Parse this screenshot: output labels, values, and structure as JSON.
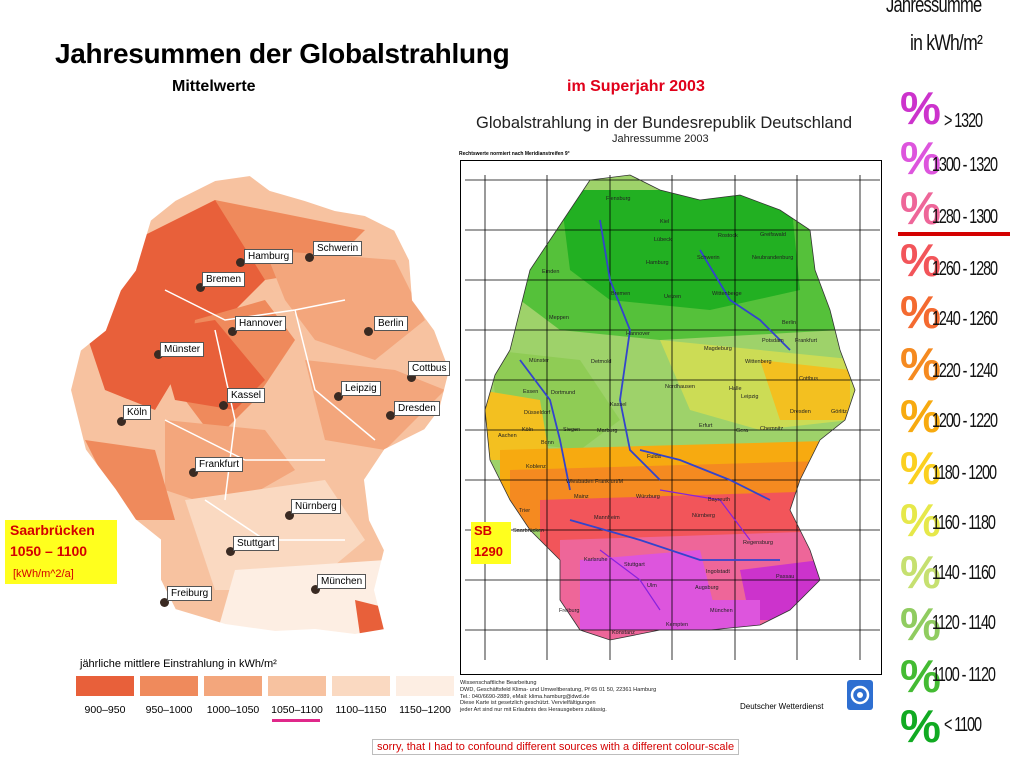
{
  "title": "Jahresummen der Globalstrahlung",
  "subtitle_left": "Mittelwerte",
  "subtitle_right": "im Superjahr 2003",
  "left_map": {
    "cities": [
      "Hamburg",
      "Schwerin",
      "Bremen",
      "Hannover",
      "Berlin",
      "Münster",
      "Cottbus",
      "Leipzig",
      "Kassel",
      "Dresden",
      "Köln",
      "Frankfurt",
      "Nürnberg",
      "Stuttgart",
      "München",
      "Freiburg"
    ],
    "legend_title": "jährliche mittlere Einstrahlung in kWh/m²",
    "legend": [
      {
        "label": "900–950",
        "color": "#e8603a"
      },
      {
        "label": "950–1000",
        "color": "#ef8a5c"
      },
      {
        "label": "1000–1050",
        "color": "#f3a67c"
      },
      {
        "label": "1050–1100",
        "color": "#f7c2a0"
      },
      {
        "label": "1100–1150",
        "color": "#fad9c1"
      },
      {
        "label": "1150–1200",
        "color": "#fdeee3"
      }
    ]
  },
  "saarbruecken": {
    "name": "Saarbrücken",
    "value": "1050 – 1100",
    "unit": "[kWh/m^2/a]"
  },
  "right_map": {
    "title": "Globalstrahlung in der Bundesrepublik Deutschland",
    "subtitle": "Jahressumme 2003",
    "note": "Rechtswerte normiert nach Meridianstreifen 9°",
    "cities": [
      "Flensburg",
      "Kiel",
      "Lübeck",
      "Rostock",
      "Greifswald",
      "Hamburg",
      "Schwerin",
      "Neubrandenburg",
      "Emden",
      "Bremen",
      "Uelzen",
      "Wittenberge",
      "Meppen",
      "Berlin",
      "Hannover",
      "Potsdam",
      "Frankfurt",
      "Magdeburg",
      "Münster",
      "Detmold",
      "Wittenberg",
      "Cottbus",
      "Nordhausen",
      "Essen",
      "Dortmund",
      "Halle",
      "Leipzig",
      "Düsseldorf",
      "Kassel",
      "Dresden",
      "Görlitz",
      "Köln",
      "Siegen",
      "Marburg",
      "Erfurt",
      "Gera",
      "Chemnitz",
      "Aachen",
      "Bonn",
      "Fulda",
      "Koblenz",
      "Wiesbaden",
      "Frankfurt/M",
      "Mainz",
      "Würzburg",
      "Bayreuth",
      "Trier",
      "Mannheim",
      "Nürnberg",
      "Saarbrücken",
      "Karlsruhe",
      "Regensburg",
      "Stuttgart",
      "Ingolstadt",
      "Passau",
      "Ulm",
      "Augsburg",
      "Freiburg",
      "München",
      "Kempten",
      "Konstanz"
    ],
    "credit": [
      "Wissenschaftliche Bearbeitung",
      "DWD, Geschäftsfeld Klima- und Umweltberatung, Pf 65 01 50, 22361 Hamburg",
      "Tel.: 040/6690-2889, eMail: klima.hamburg@dwd.de",
      "Diese Karte ist gesetzlich geschützt. Vervielfältigungen",
      "jeder Art sind nur mit Erlaubnis des Herausgebers zulässig."
    ],
    "publisher": "Deutscher Wetterdienst",
    "sb_name": "SB",
    "sb_value": "1290"
  },
  "scale": {
    "heading_line1": "Jahressumme",
    "heading_line2": "in kWh/m²",
    "items": [
      {
        "label": "> 1320",
        "color": "#cc33cc"
      },
      {
        "label": "1300 - 1320",
        "color": "#dd55dd"
      },
      {
        "label": "1280 - 1300",
        "color": "#ee6699"
      },
      {
        "label": "1260 - 1280",
        "color": "#f2555a"
      },
      {
        "label": "1240 - 1260",
        "color": "#f46a30"
      },
      {
        "label": "1220 - 1240",
        "color": "#f58a20"
      },
      {
        "label": "1200 - 1220",
        "color": "#f7aa10"
      },
      {
        "label": "1180 - 1200",
        "color": "#fbd020"
      },
      {
        "label": "1160 - 1180",
        "color": "#e6e84a"
      },
      {
        "label": "1140 - 1160",
        "color": "#c6e070"
      },
      {
        "label": "1120 - 1140",
        "color": "#90cc60"
      },
      {
        "label": "1100 - 1120",
        "color": "#44bb33"
      },
      {
        "label": "< 1100",
        "color": "#11aa22"
      }
    ]
  },
  "apology": "sorry, that I had to confound different sources with a different colour-scale"
}
